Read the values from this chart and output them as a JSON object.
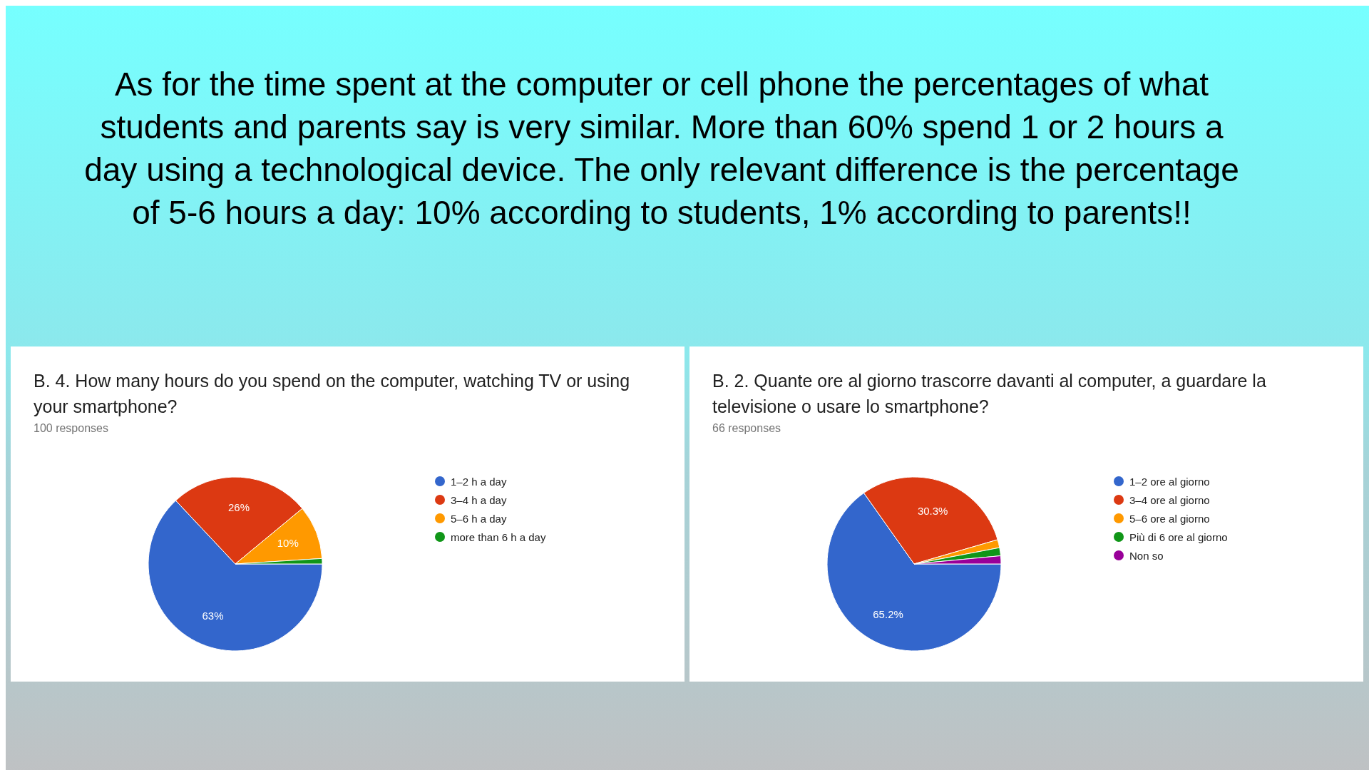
{
  "chart_data": [
    {
      "type": "pie",
      "title": "B. 4. How many hours do you spend on the computer, watching TV or using your smartphone?",
      "subtitle": "100 responses",
      "annotations": [
        "As for the time spent at the computer or cell phone the percentages of what students and parents say is very similar. More than 60% spend 1 or 2 hours a day using a technological device. The only relevant difference is the percentage of 5-6 hours a day: 10% according to students, 1% according to parents!!"
      ],
      "categories": [
        "1–2 h a day",
        "3–4 h a day",
        "5–6 h a day",
        "more than 6 h a day"
      ],
      "values": [
        63,
        26,
        10,
        1
      ],
      "value_labels": [
        "63%",
        "26%",
        "10%",
        null
      ],
      "colors": [
        "#3366cc",
        "#dc3912",
        "#ff9900",
        "#109618"
      ],
      "legend": "right"
    },
    {
      "type": "pie",
      "title": "B. 2. Quante ore al giorno trascorre davanti al computer, a guardare la televisione o usare lo smartphone?",
      "subtitle": "66 responses",
      "categories": [
        "1–2 ore al giorno",
        "3–4 ore al giorno",
        "5–6 ore al giorno",
        "Più di 6 ore al giorno",
        "Non so"
      ],
      "values": [
        65.2,
        30.3,
        1.5,
        1.5,
        1.5
      ],
      "value_labels": [
        "65.2%",
        "30.3%",
        null,
        null,
        null
      ],
      "colors": [
        "#3366cc",
        "#dc3912",
        "#ff9900",
        "#109618",
        "#990099"
      ],
      "legend": "right"
    }
  ]
}
